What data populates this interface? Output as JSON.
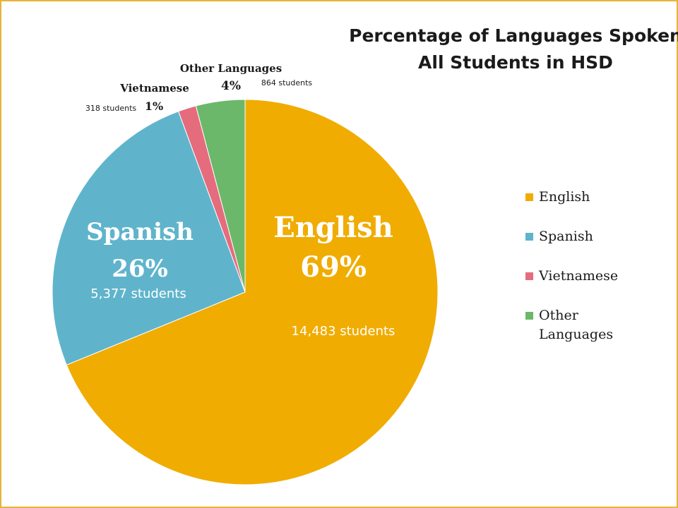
{
  "chart_data": {
    "type": "pie",
    "title": "Percentage of Languages Spoken All Students in HSD",
    "title_lines": [
      "Percentage of Languages Spoken",
      "All Students in HSD"
    ],
    "slices": [
      {
        "name": "English",
        "percent_label": "69%",
        "students": 14483,
        "students_label": "14,483 students",
        "color": "#f0ac00"
      },
      {
        "name": "Spanish",
        "percent_label": "26%",
        "students": 5377,
        "students_label": "5,377 students",
        "color": "#5fb4cc"
      },
      {
        "name": "Vietnamese",
        "percent_label": "1%",
        "students": 318,
        "students_label": "318 students",
        "color": "#e46c7d"
      },
      {
        "name": "Other Languages",
        "percent_label": "4%",
        "students": 864,
        "students_label": "864 students",
        "color": "#6bb86a"
      }
    ],
    "legend": {
      "position": "right",
      "items": [
        {
          "label": "English",
          "color": "#f0ac00"
        },
        {
          "label": "Spanish",
          "color": "#5fb4cc"
        },
        {
          "label": "Vietnamese",
          "color": "#e46c7d"
        },
        {
          "label": "Other Languages",
          "color": "#6bb86a"
        }
      ]
    }
  },
  "frame_color": "#e8b33a"
}
